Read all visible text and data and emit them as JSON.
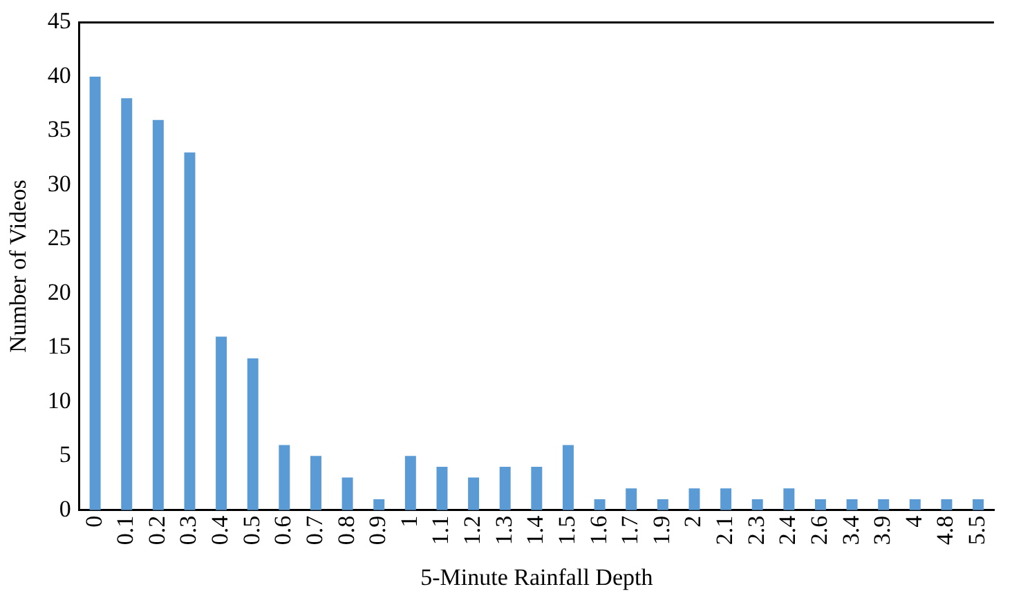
{
  "chart_data": {
    "type": "bar",
    "xlabel": "5-Minute Rainfall Depth",
    "ylabel": "Number of Videos",
    "categories": [
      "0",
      "0.1",
      "0.2",
      "0.3",
      "0.4",
      "0.5",
      "0.6",
      "0.7",
      "0.8",
      "0.9",
      "1",
      "1.1",
      "1.2",
      "1.3",
      "1.4",
      "1.5",
      "1.6",
      "1.7",
      "1.9",
      "2",
      "2.1",
      "2.3",
      "2.4",
      "2.6",
      "3.4",
      "3.9",
      "4",
      "4.8",
      "5.5"
    ],
    "values": [
      40,
      38,
      36,
      33,
      16,
      14,
      6,
      5,
      3,
      1,
      5,
      4,
      3,
      4,
      4,
      6,
      1,
      2,
      1,
      2,
      2,
      1,
      2,
      1,
      1,
      1,
      1,
      1,
      1
    ],
    "color": "#5b9bd5",
    "ylim": [
      0,
      45
    ],
    "yticks": [
      0,
      5,
      10,
      15,
      20,
      25,
      30,
      35,
      40,
      45
    ],
    "grid": false,
    "legend": false
  }
}
